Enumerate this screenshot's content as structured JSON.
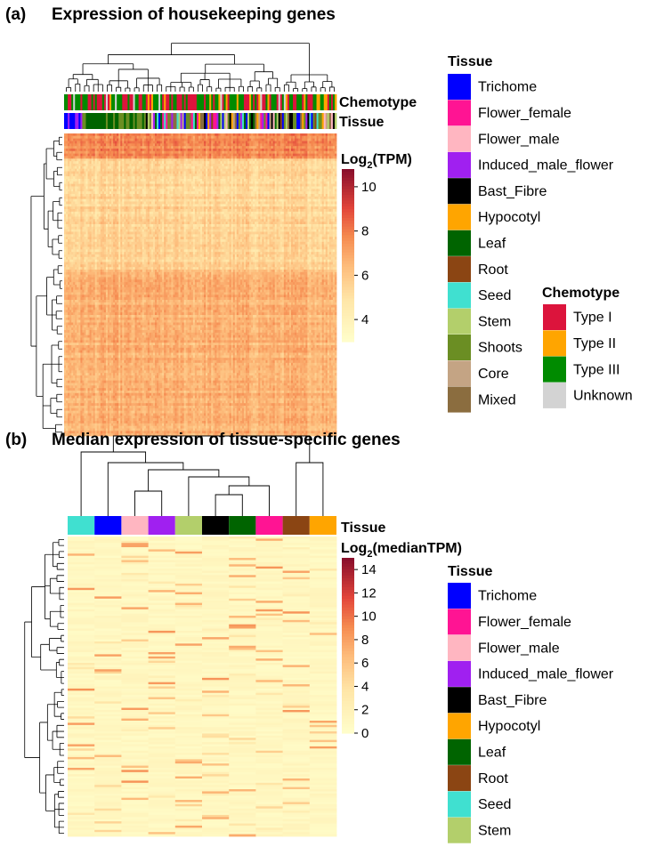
{
  "chart_data": [
    {
      "type": "heatmap",
      "panel": "(a)",
      "title": "Expression of housekeeping genes",
      "colorbar": {
        "label_prefix": "Log",
        "label_sub": "2",
        "label_suffix": "(TPM)",
        "ticks": [
          "10",
          "8",
          "6",
          "4"
        ],
        "range": [
          3,
          10.8
        ]
      },
      "annotation_rows": [
        "Chemotype",
        "Tissue"
      ],
      "dendrogram_top": true,
      "dendrogram_left": true,
      "legends": [
        {
          "title": "Tissue",
          "items": [
            {
              "label": "Trichome",
              "color": "#0000ff"
            },
            {
              "label": "Flower_female",
              "color": "#ff1493"
            },
            {
              "label": "Flower_male",
              "color": "#ffb6c1"
            },
            {
              "label": "Induced_male_flower",
              "color": "#a020f0"
            },
            {
              "label": "Bast_Fibre",
              "color": "#000000"
            },
            {
              "label": "Hypocotyl",
              "color": "#ffa500"
            },
            {
              "label": "Leaf",
              "color": "#006400"
            },
            {
              "label": "Root",
              "color": "#8b4513"
            },
            {
              "label": "Seed",
              "color": "#40e0d0"
            },
            {
              "label": "Stem",
              "color": "#b3cf6b"
            },
            {
              "label": "Shoots",
              "color": "#6b8e23"
            },
            {
              "label": "Core",
              "color": "#c4a484"
            },
            {
              "label": "Mixed",
              "color": "#8b6d3f"
            }
          ]
        },
        {
          "title": "Chemotype",
          "items": [
            {
              "label": "Type I",
              "color": "#dc143c"
            },
            {
              "label": "Type II",
              "color": "#ffa500"
            },
            {
              "label": "Type III",
              "color": "#008b00"
            },
            {
              "label": "Unknown",
              "color": "#d3d3d3"
            }
          ]
        }
      ]
    },
    {
      "type": "heatmap",
      "panel": "(b)",
      "title": "Median expression of tissue-specific genes",
      "columns": [
        "Seed",
        "Trichome",
        "Flower_male",
        "Induced_male_flower",
        "Stem",
        "Bast_Fibre",
        "Leaf",
        "Flower_female",
        "Root",
        "Hypocotyl"
      ],
      "annotation_rows": [
        "Tissue"
      ],
      "colorbar": {
        "label_prefix": "Log",
        "label_sub": "2",
        "label_suffix": "(medianTPM)",
        "ticks": [
          "14",
          "12",
          "10",
          "8",
          "6",
          "4",
          "2",
          "0"
        ],
        "range": [
          0,
          15
        ]
      },
      "dendrogram_top": true,
      "dendrogram_left": true,
      "legends": [
        {
          "title": "Tissue",
          "items": [
            {
              "label": "Trichome",
              "color": "#0000ff"
            },
            {
              "label": "Flower_female",
              "color": "#ff1493"
            },
            {
              "label": "Flower_male",
              "color": "#ffb6c1"
            },
            {
              "label": "Induced_male_flower",
              "color": "#a020f0"
            },
            {
              "label": "Bast_Fibre",
              "color": "#000000"
            },
            {
              "label": "Hypocotyl",
              "color": "#ffa500"
            },
            {
              "label": "Leaf",
              "color": "#006400"
            },
            {
              "label": "Root",
              "color": "#8b4513"
            },
            {
              "label": "Seed",
              "color": "#40e0d0"
            },
            {
              "label": "Stem",
              "color": "#b3cf6b"
            }
          ]
        }
      ]
    }
  ]
}
